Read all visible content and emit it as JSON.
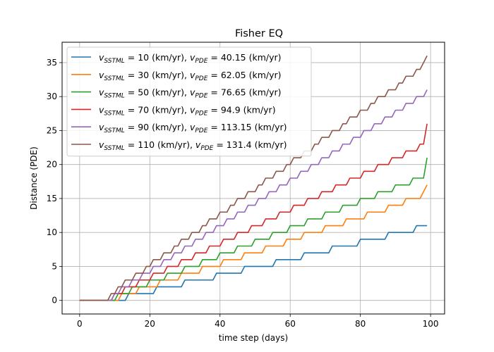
{
  "chart_data": {
    "type": "line",
    "title": "Fisher EQ",
    "xlabel": "time step (days)",
    "ylabel": "Distance (PDE)",
    "xlim": [
      -5,
      104
    ],
    "ylim": [
      -2,
      38
    ],
    "xticks": [
      0,
      20,
      40,
      60,
      80,
      100
    ],
    "yticks": [
      0,
      5,
      10,
      15,
      20,
      25,
      30,
      35
    ],
    "grid": true,
    "legend_position": "upper-left",
    "series": [
      {
        "name": "v_SSTML = 10 (km/yr), v_PDE = 40.15 (km/yr)",
        "legend": {
          "vs": "10",
          "vp": "40.15"
        },
        "color": "#1f77b4",
        "offset": 13,
        "final_t": 99
      },
      {
        "name": "v_SSTML = 30 (km/yr), v_PDE = 62.05 (km/yr)",
        "legend": {
          "vs": "30",
          "vp": "62.05"
        },
        "color": "#ff7f0e",
        "offset": 11,
        "final_t": 99
      },
      {
        "name": "v_SSTML = 50 (km/yr), v_PDE = 76.65 (km/yr)",
        "legend": {
          "vs": "50",
          "vp": "76.65"
        },
        "color": "#2ca02c",
        "offset": 10,
        "final_t": 99
      },
      {
        "name": "v_SSTML = 70 (km/yr), v_PDE = 94.9 (km/yr)",
        "legend": {
          "vs": "70",
          "vp": "94.9"
        },
        "color": "#d62728",
        "offset": 9,
        "final_t": 99
      },
      {
        "name": "v_SSTML = 90 (km/yr), v_PDE = 113.15 (km/yr)",
        "legend": {
          "vs": "90",
          "vp": "113.15"
        },
        "color": "#9467bd",
        "offset": 9,
        "final_t": 99
      },
      {
        "name": "v_SSTML = 110 (km/yr), v_PDE = 131.4 (km/yr)",
        "legend": {
          "vs": "110",
          "vp": "131.4"
        },
        "color": "#8c564b",
        "offset": 8,
        "final_t": 99
      }
    ],
    "x": [
      0,
      1,
      2,
      3,
      4,
      5,
      6,
      7,
      8,
      9,
      10,
      11,
      12,
      13,
      14,
      15,
      16,
      17,
      18,
      19,
      20,
      21,
      22,
      23,
      24,
      25,
      26,
      27,
      28,
      29,
      30,
      31,
      32,
      33,
      34,
      35,
      36,
      37,
      38,
      39,
      40,
      41,
      42,
      43,
      44,
      45,
      46,
      47,
      48,
      49,
      50,
      51,
      52,
      53,
      54,
      55,
      56,
      57,
      58,
      59,
      60,
      61,
      62,
      63,
      64,
      65,
      66,
      67,
      68,
      69,
      70,
      71,
      72,
      73,
      74,
      75,
      76,
      77,
      78,
      79,
      80,
      81,
      82,
      83,
      84,
      85,
      86,
      87,
      88,
      89,
      90,
      91,
      92,
      93,
      94,
      95,
      96,
      97,
      98,
      99
    ],
    "y": [
      [
        0,
        0,
        0,
        0,
        0,
        0,
        0,
        0,
        0,
        0,
        0,
        0,
        0,
        0,
        1,
        1,
        1,
        1,
        1,
        1,
        1,
        1,
        2,
        2,
        2,
        2,
        2,
        2,
        2,
        2,
        3,
        3,
        3,
        3,
        3,
        3,
        3,
        3,
        3,
        4,
        4,
        4,
        4,
        4,
        4,
        4,
        4,
        5,
        5,
        5,
        5,
        5,
        5,
        5,
        5,
        5,
        6,
        6,
        6,
        6,
        6,
        6,
        6,
        6,
        7,
        7,
        7,
        7,
        7,
        7,
        7,
        7,
        8,
        8,
        8,
        8,
        8,
        8,
        8,
        8,
        9,
        9,
        9,
        9,
        9,
        9,
        9,
        9,
        10,
        10,
        10,
        10,
        10,
        10,
        10,
        10,
        11,
        11,
        11,
        11
      ],
      [
        0,
        0,
        0,
        0,
        0,
        0,
        0,
        0,
        0,
        0,
        0,
        0,
        1,
        1,
        1,
        1,
        1,
        2,
        2,
        2,
        2,
        2,
        2,
        3,
        3,
        3,
        3,
        3,
        3,
        4,
        4,
        4,
        4,
        4,
        4,
        5,
        5,
        5,
        5,
        5,
        5,
        6,
        6,
        6,
        6,
        6,
        6,
        7,
        7,
        7,
        7,
        7,
        7,
        8,
        8,
        8,
        8,
        8,
        8,
        9,
        9,
        9,
        9,
        9,
        10,
        10,
        10,
        10,
        10,
        10,
        11,
        11,
        11,
        11,
        11,
        11,
        12,
        12,
        12,
        12,
        12,
        12,
        13,
        13,
        13,
        13,
        13,
        13,
        14,
        14,
        14,
        14,
        14,
        15,
        15,
        15,
        15,
        15,
        16,
        17
      ],
      [
        0,
        0,
        0,
        0,
        0,
        0,
        0,
        0,
        0,
        0,
        0,
        1,
        1,
        1,
        1,
        2,
        2,
        2,
        2,
        2,
        3,
        3,
        3,
        3,
        3,
        4,
        4,
        4,
        4,
        4,
        5,
        5,
        5,
        5,
        5,
        6,
        6,
        6,
        6,
        6,
        7,
        7,
        7,
        7,
        7,
        8,
        8,
        8,
        8,
        8,
        9,
        9,
        9,
        9,
        9,
        10,
        10,
        10,
        10,
        10,
        11,
        11,
        11,
        11,
        11,
        12,
        12,
        12,
        12,
        12,
        13,
        13,
        13,
        13,
        13,
        14,
        14,
        14,
        14,
        14,
        15,
        15,
        15,
        15,
        15,
        16,
        16,
        16,
        16,
        16,
        17,
        17,
        17,
        17,
        17,
        18,
        18,
        18,
        18,
        21
      ],
      [
        0,
        0,
        0,
        0,
        0,
        0,
        0,
        0,
        0,
        0,
        1,
        1,
        1,
        2,
        2,
        2,
        2,
        3,
        3,
        3,
        3,
        4,
        4,
        4,
        4,
        5,
        5,
        5,
        5,
        6,
        6,
        6,
        6,
        7,
        7,
        7,
        7,
        8,
        8,
        8,
        8,
        9,
        9,
        9,
        9,
        10,
        10,
        10,
        10,
        11,
        11,
        11,
        11,
        12,
        12,
        12,
        12,
        13,
        13,
        13,
        13,
        14,
        14,
        14,
        14,
        15,
        15,
        15,
        15,
        16,
        16,
        16,
        16,
        17,
        17,
        17,
        17,
        18,
        18,
        18,
        18,
        19,
        19,
        19,
        19,
        20,
        20,
        20,
        20,
        21,
        21,
        21,
        21,
        22,
        22,
        22,
        22,
        23,
        23,
        26
      ],
      [
        0,
        0,
        0,
        0,
        0,
        0,
        0,
        0,
        0,
        0,
        1,
        1,
        2,
        2,
        2,
        3,
        3,
        3,
        4,
        4,
        4,
        5,
        5,
        5,
        6,
        6,
        6,
        7,
        7,
        7,
        8,
        8,
        8,
        9,
        9,
        9,
        10,
        10,
        10,
        11,
        11,
        11,
        12,
        12,
        12,
        13,
        13,
        13,
        14,
        14,
        14,
        15,
        15,
        15,
        16,
        16,
        16,
        17,
        17,
        17,
        18,
        18,
        18,
        19,
        19,
        19,
        20,
        20,
        20,
        21,
        21,
        21,
        22,
        22,
        22,
        23,
        23,
        23,
        24,
        24,
        24,
        25,
        25,
        25,
        26,
        26,
        26,
        27,
        27,
        27,
        28,
        28,
        28,
        29,
        29,
        29,
        30,
        30,
        30,
        31
      ],
      [
        0,
        0,
        0,
        0,
        0,
        0,
        0,
        0,
        0,
        1,
        1,
        2,
        2,
        3,
        3,
        3,
        4,
        4,
        4,
        5,
        5,
        6,
        6,
        6,
        7,
        7,
        7,
        8,
        8,
        9,
        9,
        9,
        10,
        10,
        10,
        11,
        11,
        12,
        12,
        12,
        13,
        13,
        13,
        14,
        14,
        15,
        15,
        15,
        16,
        16,
        16,
        17,
        17,
        18,
        18,
        18,
        19,
        19,
        19,
        20,
        20,
        21,
        21,
        21,
        22,
        22,
        22,
        23,
        23,
        24,
        24,
        24,
        25,
        25,
        25,
        26,
        26,
        27,
        27,
        27,
        28,
        28,
        28,
        29,
        29,
        30,
        30,
        30,
        31,
        31,
        31,
        32,
        32,
        33,
        33,
        33,
        34,
        34,
        35,
        36
      ]
    ]
  }
}
